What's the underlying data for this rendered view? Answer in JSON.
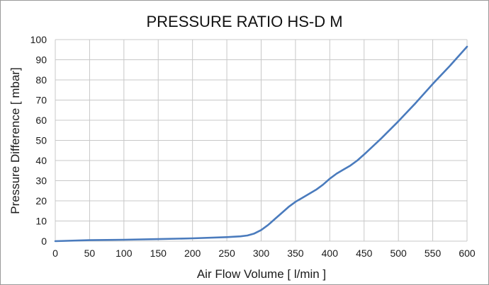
{
  "chart_data": {
    "type": "line",
    "title": "PRESSURE RATIO HS-D M",
    "xlabel": "Air Flow Volume [ l/min ]",
    "ylabel": "Pressure Difference [ mbar]",
    "xlim": [
      0,
      600
    ],
    "ylim": [
      0,
      100
    ],
    "x_ticks": [
      0,
      50,
      100,
      150,
      200,
      250,
      300,
      350,
      400,
      450,
      500,
      550,
      600
    ],
    "y_ticks": [
      0,
      10,
      20,
      30,
      40,
      50,
      60,
      70,
      80,
      90,
      100
    ],
    "grid": true,
    "legend": "none",
    "series_color": "#4a7bbd",
    "series": [
      {
        "x": [
          0,
          50,
          100,
          150,
          200,
          250,
          270,
          280,
          290,
          300,
          310,
          320,
          330,
          340,
          350,
          360,
          370,
          380,
          390,
          400,
          410,
          420,
          430,
          440,
          450,
          475,
          500,
          525,
          550,
          575,
          600
        ],
        "y": [
          0,
          0.5,
          0.7,
          1.0,
          1.4,
          2.0,
          2.4,
          2.8,
          3.8,
          5.5,
          8.0,
          11.0,
          14.0,
          17.0,
          19.5,
          21.5,
          23.5,
          25.5,
          28.0,
          31.0,
          33.5,
          35.5,
          37.5,
          40.0,
          43.0,
          51.0,
          59.5,
          68.5,
          78.0,
          87.0,
          96.5
        ]
      }
    ]
  }
}
